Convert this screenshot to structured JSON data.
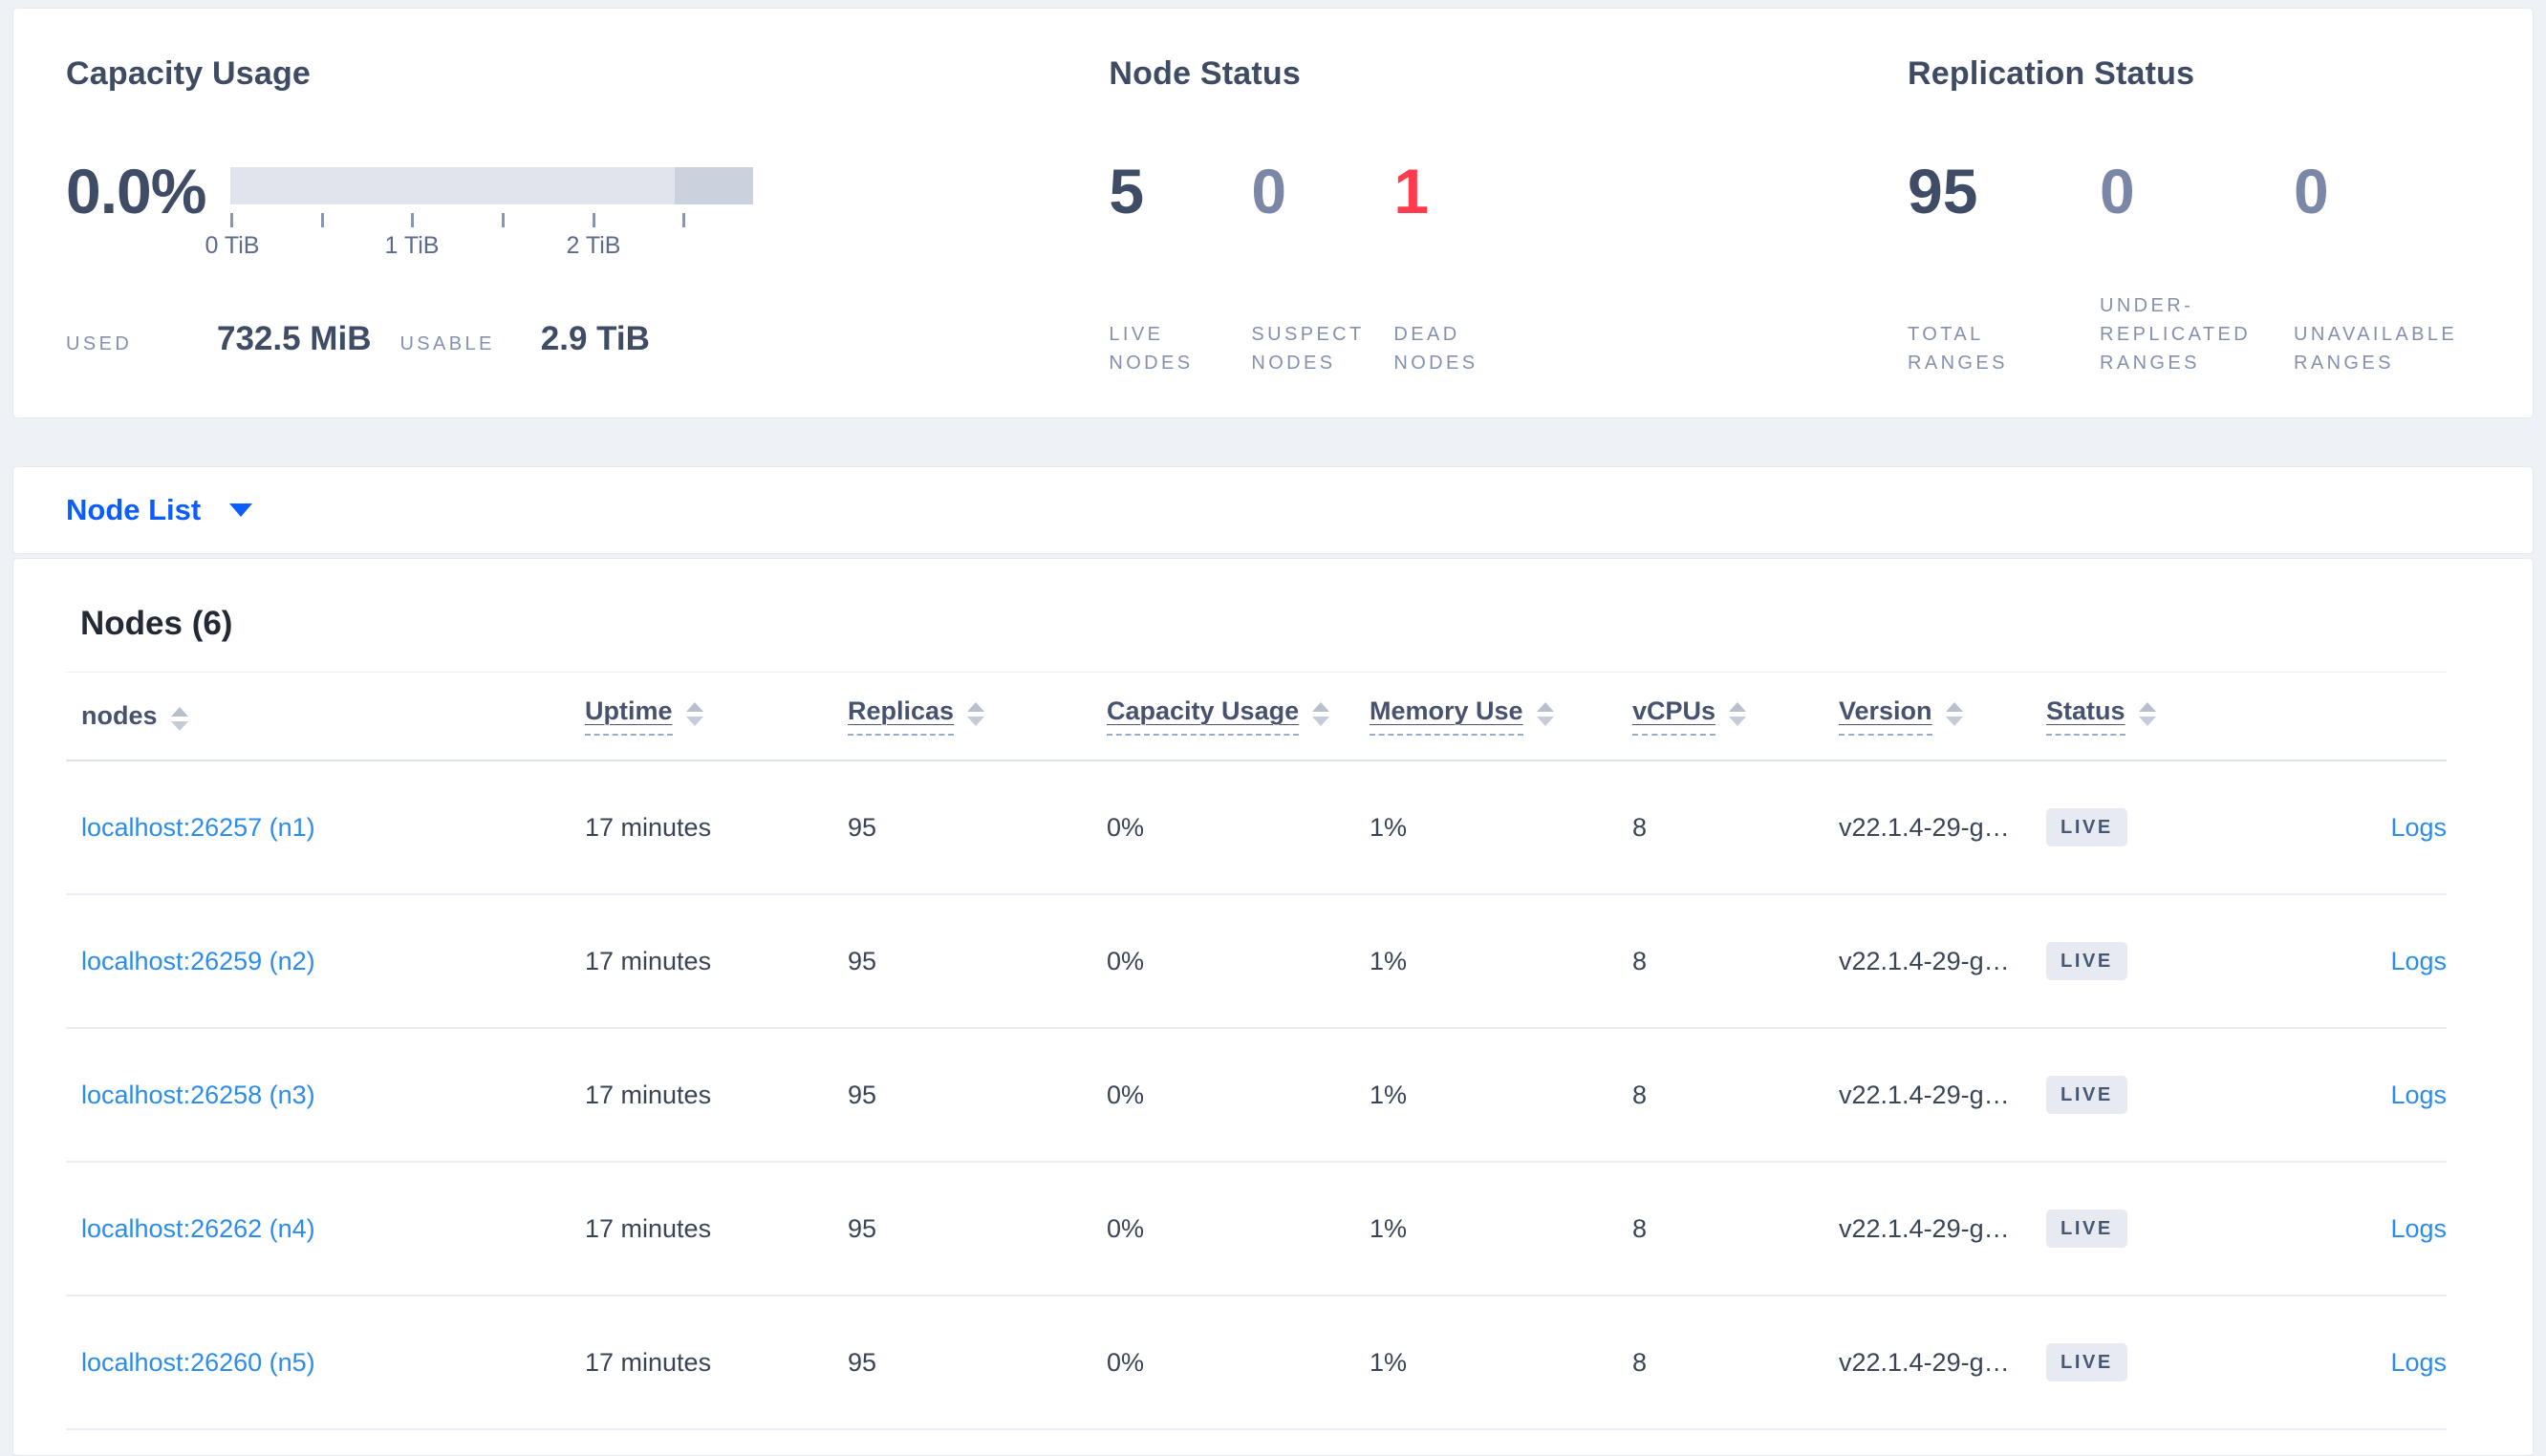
{
  "theme": {
    "page_bg": "#eef1f6",
    "accent_blue": "#0b5dff",
    "link_blue": "#2b8ced",
    "dead_red": "#ff3b4e",
    "stat_dark": "#3f4c66",
    "stat_muted": "#7b87a6",
    "bar_light": "#e2e4ed",
    "bar_dark": "#ccd1de"
  },
  "capacity": {
    "title": "Capacity Usage",
    "percent": "0.0%",
    "tick_labels": [
      "0 TiB",
      "1 TiB",
      "2 TiB"
    ],
    "used_label": "USED",
    "used_value": "732.5 MiB",
    "usable_label": "USABLE",
    "usable_value": "2.9 TiB"
  },
  "node_status": {
    "title": "Node Status",
    "stats": [
      {
        "value": "5",
        "label": "LIVE NODES",
        "color": "#3f4c66"
      },
      {
        "value": "0",
        "label": "SUSPECT NODES",
        "color": "#7b87a6"
      },
      {
        "value": "1",
        "label": "DEAD NODES",
        "color": "#ff3b4e"
      }
    ]
  },
  "replication_status": {
    "title": "Replication Status",
    "stats": [
      {
        "value": "95",
        "label": "TOTAL RANGES",
        "color": "#3f4c66"
      },
      {
        "value": "0",
        "label": "UNDER-REPLICATED RANGES",
        "color": "#7b87a6"
      },
      {
        "value": "0",
        "label": "UNAVAILABLE RANGES",
        "color": "#7b87a6"
      }
    ]
  },
  "view_selector": {
    "label": "Node List"
  },
  "nodes_section": {
    "title": "Nodes (6)",
    "columns": [
      "nodes",
      "Uptime",
      "Replicas",
      "Capacity Usage",
      "Memory Use",
      "vCPUs",
      "Version",
      "Status"
    ],
    "rows": [
      {
        "node": "localhost:26257 (n1)",
        "uptime": "17 minutes",
        "replicas": "95",
        "capacity_usage": "0%",
        "memory_use": "1%",
        "vcpus": "8",
        "version": "v22.1.4-29-g…",
        "status": "LIVE",
        "logs": "Logs"
      },
      {
        "node": "localhost:26259 (n2)",
        "uptime": "17 minutes",
        "replicas": "95",
        "capacity_usage": "0%",
        "memory_use": "1%",
        "vcpus": "8",
        "version": "v22.1.4-29-g…",
        "status": "LIVE",
        "logs": "Logs"
      },
      {
        "node": "localhost:26258 (n3)",
        "uptime": "17 minutes",
        "replicas": "95",
        "capacity_usage": "0%",
        "memory_use": "1%",
        "vcpus": "8",
        "version": "v22.1.4-29-g…",
        "status": "LIVE",
        "logs": "Logs"
      },
      {
        "node": "localhost:26262 (n4)",
        "uptime": "17 minutes",
        "replicas": "95",
        "capacity_usage": "0%",
        "memory_use": "1%",
        "vcpus": "8",
        "version": "v22.1.4-29-g…",
        "status": "LIVE",
        "logs": "Logs"
      },
      {
        "node": "localhost:26260 (n5)",
        "uptime": "17 minutes",
        "replicas": "95",
        "capacity_usage": "0%",
        "memory_use": "1%",
        "vcpus": "8",
        "version": "v22.1.4-29-g…",
        "status": "LIVE",
        "logs": "Logs"
      }
    ]
  }
}
